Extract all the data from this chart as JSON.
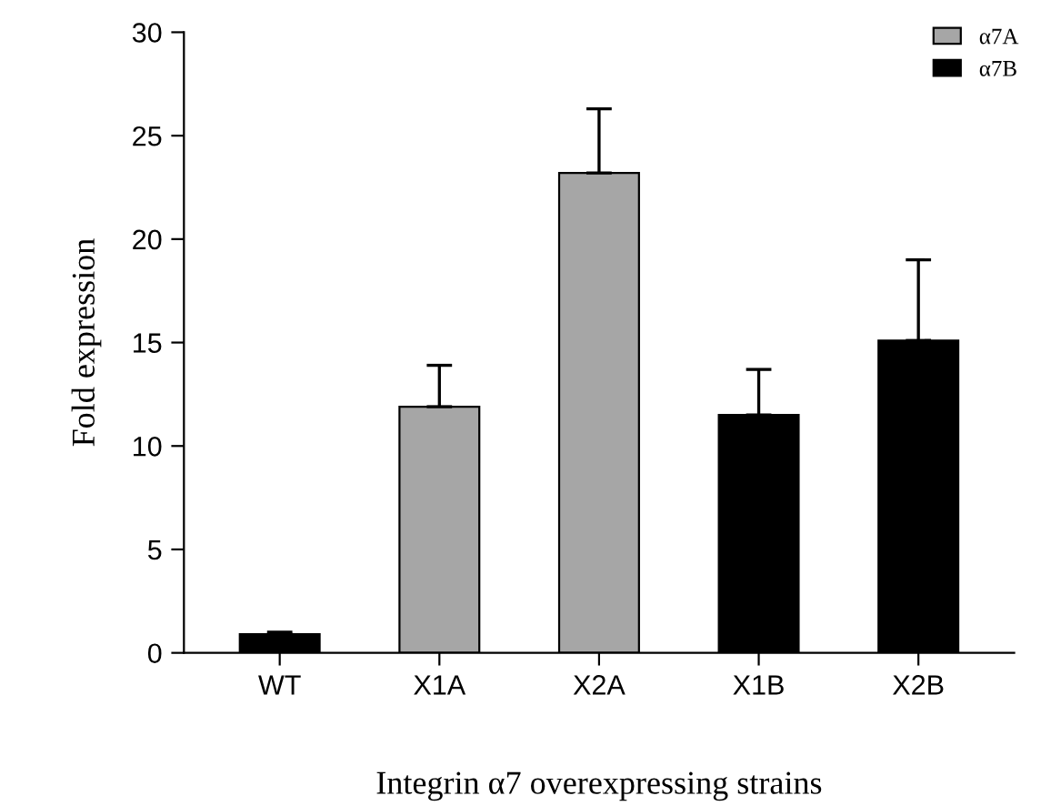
{
  "chart_data": {
    "type": "bar",
    "xlabel": "Integrin α7 overexpressing strains",
    "ylabel": "Fold expression",
    "categories": [
      "WT",
      "X1A",
      "X2A",
      "X1B",
      "X2B"
    ],
    "series": [
      {
        "name": "α7A",
        "color": "#a6a6a6",
        "values": [
          null,
          11.9,
          23.2,
          null,
          null
        ],
        "errors": [
          null,
          [
            11.9,
            13.9
          ],
          [
            23.2,
            26.3
          ],
          null,
          null
        ]
      },
      {
        "name": "α7B",
        "color": "#000000",
        "values": [
          0.9,
          null,
          null,
          11.5,
          15.1
        ],
        "errors": [
          [
            0.9,
            1.0
          ],
          null,
          null,
          [
            11.5,
            13.7
          ],
          [
            15.1,
            19.0
          ]
        ]
      }
    ],
    "ylim": [
      0,
      30
    ],
    "yticks": [
      0,
      5,
      10,
      15,
      20,
      25,
      30
    ],
    "grid": false,
    "legend": "top right"
  }
}
